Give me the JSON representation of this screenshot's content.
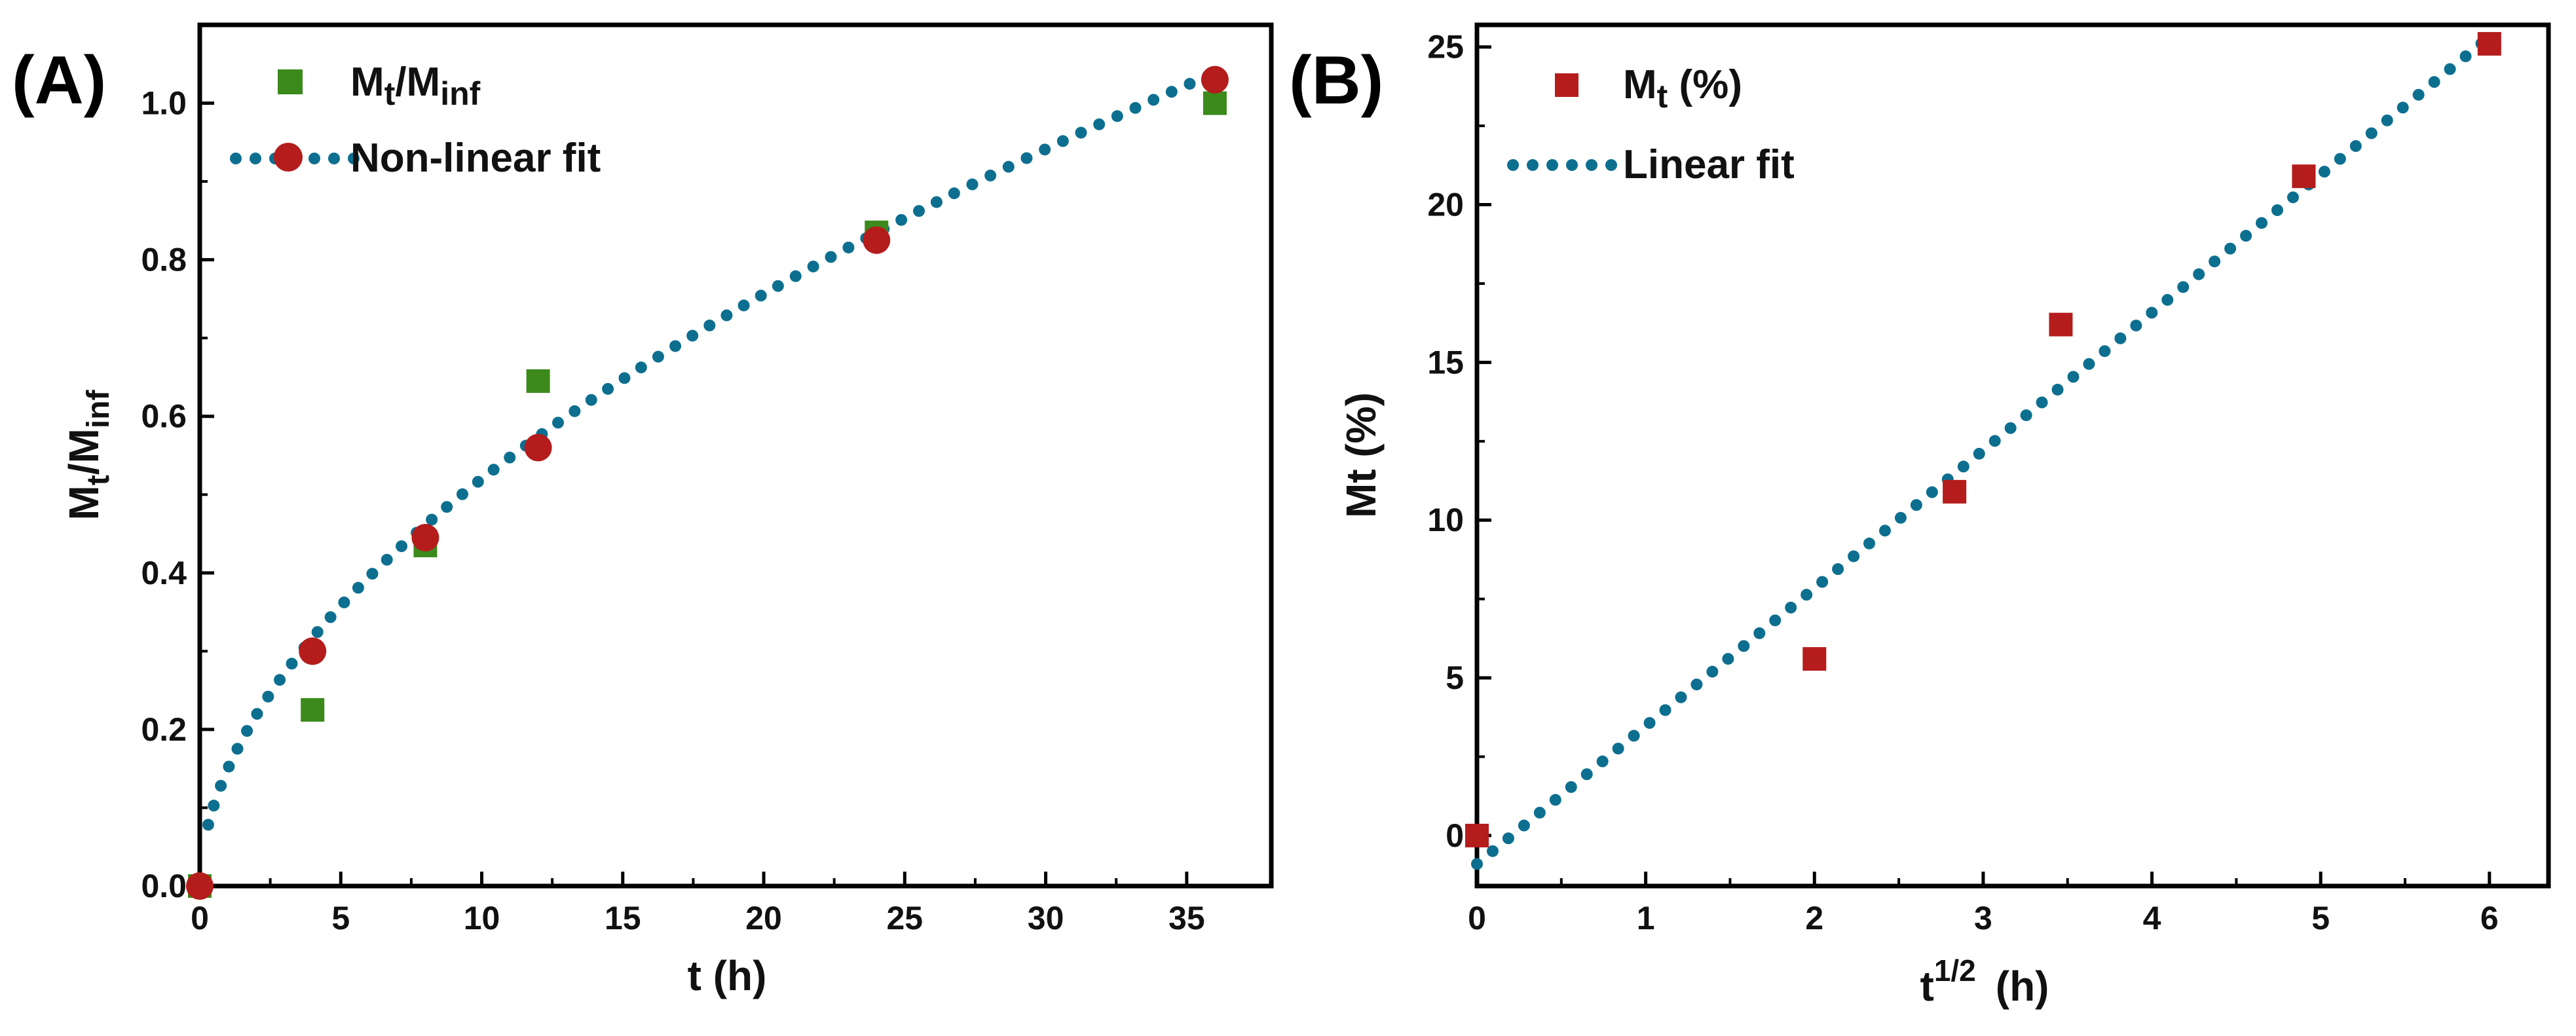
{
  "colors": {
    "fit": "#0d6f8f",
    "panelA_data": "#3c8a1c",
    "panelA_fit_marker": "#b51c1c",
    "panelB_data": "#b51c1c",
    "axis": "#000000"
  },
  "chart_data": [
    {
      "panel_label": "(A)",
      "type": "scatter",
      "xlabel": "t (h)",
      "ylabel": {
        "base": "M",
        "sub1": "t",
        "mid": "/M",
        "sub2": "inf"
      },
      "xlim": [
        0,
        38
      ],
      "ylim": [
        0,
        1.1
      ],
      "xticks": [
        0,
        5,
        10,
        15,
        20,
        25,
        30,
        35
      ],
      "xtick_labels": [
        "0",
        "5",
        "10",
        "15",
        "20",
        "25",
        "30",
        "35"
      ],
      "yticks": [
        0.0,
        0.2,
        0.4,
        0.6,
        0.8,
        1.0
      ],
      "ytick_labels": [
        "0.0",
        "0.2",
        "0.4",
        "0.6",
        "0.8",
        "1.0"
      ],
      "legend": [
        {
          "base": "M",
          "sub1": "t",
          "mid": "/M",
          "sub2": "inf",
          "marker": "square"
        },
        {
          "label": "Non-linear fit",
          "marker": "dotted-line-circle"
        }
      ],
      "series": [
        {
          "name": "Mt/Minf",
          "marker": "square",
          "x": [
            0,
            4,
            8,
            12,
            24,
            36
          ],
          "y": [
            0.0,
            0.225,
            0.435,
            0.645,
            0.835,
            1.0
          ]
        },
        {
          "name": "Non-linear fit points",
          "marker": "circle",
          "x": [
            0,
            4,
            8,
            12,
            24,
            36
          ],
          "y": [
            0.0,
            0.3,
            0.445,
            0.56,
            0.825,
            1.03
          ]
        }
      ],
      "fit": {
        "type": "power",
        "k": 0.15,
        "n": 0.54,
        "x_range": [
          0.3,
          36
        ],
        "style": "dotted"
      }
    },
    {
      "panel_label": "(B)",
      "type": "scatter",
      "xlabel": {
        "base": "t",
        "sup": "1/2",
        "unit": "(h)"
      },
      "ylabel": "Mt (%)",
      "xlim": [
        0,
        6.35
      ],
      "ylim": [
        -1.6,
        25.7
      ],
      "xticks": [
        0,
        1,
        2,
        3,
        4,
        5,
        6
      ],
      "xtick_labels": [
        "0",
        "1",
        "2",
        "3",
        "4",
        "5",
        "6"
      ],
      "yticks": [
        0,
        5,
        10,
        15,
        20,
        25
      ],
      "ytick_labels": [
        "0",
        "5",
        "10",
        "15",
        "20",
        "25"
      ],
      "legend": [
        {
          "base": "M",
          "sub1": "t",
          "suffix": " (%)",
          "marker": "square"
        },
        {
          "label": "Linear fit",
          "marker": "dotted-line"
        }
      ],
      "series": [
        {
          "name": "Mt (%)",
          "marker": "square",
          "x": [
            0,
            2,
            2.83,
            3.46,
            4.9,
            6
          ],
          "y": [
            0,
            5.6,
            10.9,
            16.2,
            20.9,
            25.1
          ]
        }
      ],
      "fit": {
        "type": "linear",
        "slope": 4.37,
        "intercept": -0.9,
        "x_range": [
          0,
          6
        ],
        "style": "dotted"
      }
    }
  ]
}
